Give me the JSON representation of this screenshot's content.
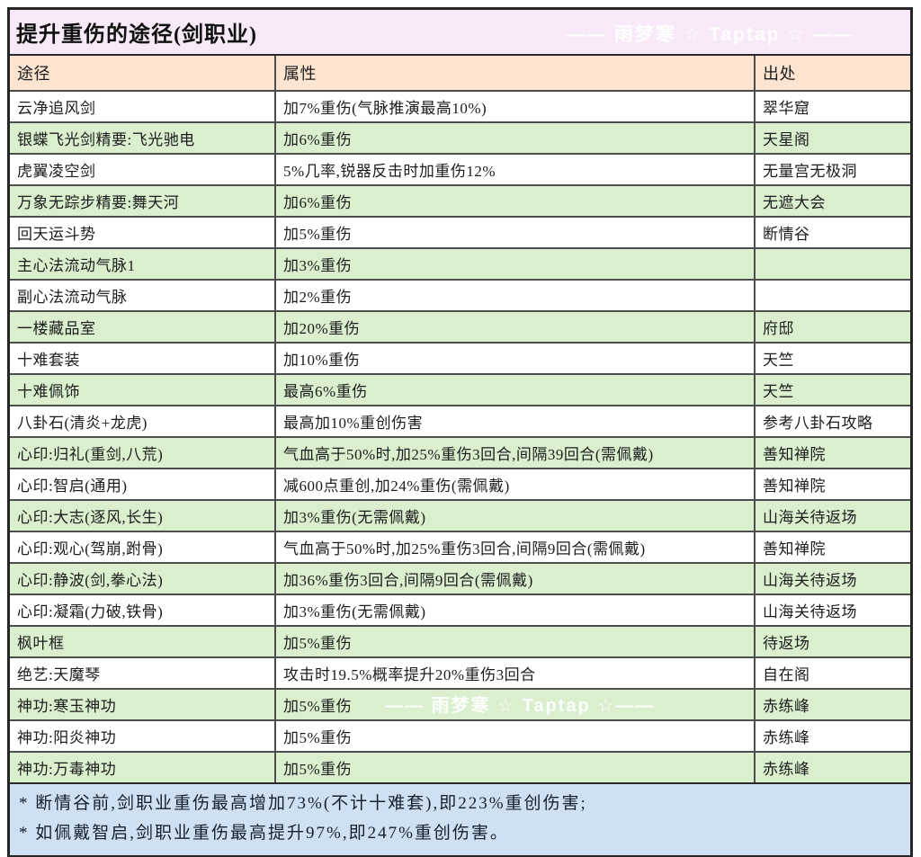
{
  "title": "提升重伤的途径(剑职业)",
  "watermark_top": "—— 雨梦寒 ☆ Taptap ☆ ——",
  "watermark_mid": "—— 雨梦寒 ☆ Taptap ☆——",
  "chart_data": {
    "type": "table",
    "title": "提升重伤的途径(剑职业)",
    "columns": [
      "途径",
      "属性",
      "出处"
    ],
    "rows": [
      [
        "云净追风剑",
        "加7%重伤(气脉推演最高10%)",
        "翠华窟"
      ],
      [
        "银蝶飞光剑精要:飞光驰电",
        "加6%重伤",
        "天星阁"
      ],
      [
        "虎翼凌空剑",
        "5%几率,锐器反击时加重伤12%",
        "无量宫无极洞"
      ],
      [
        "万象无踪步精要:舞天河",
        "加6%重伤",
        "无遮大会"
      ],
      [
        "回天运斗势",
        "加5%重伤",
        "断情谷"
      ],
      [
        "主心法流动气脉1",
        "加3%重伤",
        ""
      ],
      [
        "副心法流动气脉",
        "加2%重伤",
        ""
      ],
      [
        "一楼藏品室",
        "加20%重伤",
        "府邸"
      ],
      [
        "十难套装",
        "加10%重伤",
        "天竺"
      ],
      [
        "十难佩饰",
        "最高6%重伤",
        "天竺"
      ],
      [
        "八卦石(清炎+龙虎)",
        "最高加10%重创伤害",
        "参考八卦石攻略"
      ],
      [
        "心印:归礼(重剑,八荒)",
        "气血高于50%时,加25%重伤3回合,间隔39回合(需佩戴)",
        "善知禅院"
      ],
      [
        "心印:智启(通用)",
        "减600点重创,加24%重伤(需佩戴)",
        "善知禅院"
      ],
      [
        "心印:大志(逐风,长生)",
        "加3%重伤(无需佩戴)",
        "山海关待返场"
      ],
      [
        "心印:观心(驾崩,跗骨)",
        "气血高于50%时,加25%重伤3回合,间隔9回合(需佩戴)",
        "善知禅院"
      ],
      [
        "心印:静波(剑,拳心法)",
        "加36%重伤3回合,间隔9回合(需佩戴)",
        "山海关待返场"
      ],
      [
        "心印:凝霜(力破,铁骨)",
        "加3%重伤(无需佩戴)",
        "山海关待返场"
      ],
      [
        "枫叶框",
        "加5%重伤",
        "待返场"
      ],
      [
        "绝艺:天魔琴",
        "攻击时19.5%概率提升20%重伤3回合",
        "自在阁"
      ],
      [
        "神功:寒玉神功",
        "加5%重伤",
        "赤练峰"
      ],
      [
        "神功:阳炎神功",
        "加5%重伤",
        "赤练峰"
      ],
      [
        "神功:万毒神功",
        "加5%重伤",
        "赤练峰"
      ]
    ]
  },
  "notes": [
    "* 断情谷前,剑职业重伤最高增加73%(不计十难套),即223%重创伤害;",
    "* 如佩戴智启,剑职业重伤最高提升97%,即247%重创伤害。"
  ],
  "colors": {
    "title_bg": "#f8e9f8",
    "header_bg": "#fce4d1",
    "row_green": "#d9efce",
    "row_white": "#ffffff",
    "notes_bg": "#cfe0f2",
    "border_outer": "#262626",
    "border_inner": "#4d4d4d",
    "watermark": "#ffffff"
  }
}
